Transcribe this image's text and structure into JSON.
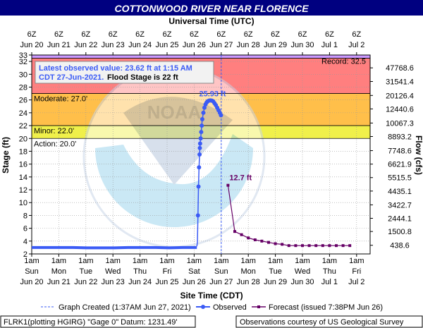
{
  "page": {
    "title": "COTTONWOOD RIVER NEAR FLORENCE",
    "top_axis_title": "Universal Time (UTC)",
    "bottom_axis_title": "Site Time (CDT)",
    "left_axis_label": "Stage (ft)",
    "right_axis_label": "Flow (cfs)",
    "latest_line1": "Latest observed value: 23.62 ft at 1:15 AM",
    "latest_line2a": "CDT 27-Jun-2021.",
    "latest_line2b": "Flood Stage is 22 ft",
    "legend_created": "Graph Created (1:37AM Jun 27, 2021)",
    "legend_observed": "Observed",
    "legend_forecast": "Forecast (issued 7:38PM Jun 26)",
    "footer_left": "FLRK1(plotting HGIRG) \"Gage 0\" Datum: 1231.49'",
    "footer_right": "Observations courtesy of US Geological Survey",
    "watermark_noaa": "NOAA",
    "colors": {
      "title_bg": "#000080",
      "observed": "#3b5bf5",
      "forecast": "#660066",
      "record_band": "#cc99ff",
      "major_band": "#ff7f7f",
      "moderate_band": "#ffbf4a",
      "minor_band": "#f0f04a",
      "latest_text": "#3b5bf5"
    }
  },
  "chart_data": {
    "type": "line",
    "ylim": [
      2,
      33
    ],
    "xlim": [
      0,
      12.5
    ],
    "y_ticks": [
      "2",
      "4",
      "6",
      "8",
      "10",
      "12",
      "14",
      "16",
      "18",
      "20",
      "22",
      "24",
      "26",
      "28",
      "30",
      "32",
      "33"
    ],
    "right_ticks": [
      {
        "stage": 31,
        "label": "47768.6"
      },
      {
        "stage": 28.875,
        "label": "31541.4"
      },
      {
        "stage": 26.7,
        "label": "20126.4"
      },
      {
        "stage": 24.6,
        "label": "12440.6"
      },
      {
        "stage": 22.4,
        "label": "10067.3"
      },
      {
        "stage": 20.3,
        "label": "8893.2"
      },
      {
        "stage": 18.1,
        "label": "7748.6"
      },
      {
        "stage": 16.0,
        "label": "6621.9"
      },
      {
        "stage": 13.9,
        "label": "5515.5"
      },
      {
        "stage": 11.8,
        "label": "4435.1"
      },
      {
        "stage": 9.65,
        "label": "3422.7"
      },
      {
        "stage": 7.55,
        "label": "2444.1"
      },
      {
        "stage": 5.5,
        "label": "1500.8"
      },
      {
        "stage": 3.35,
        "label": "438.6"
      }
    ],
    "bottom_ticks": [
      {
        "time": "1am",
        "day": "Sun",
        "date": "Jun 20"
      },
      {
        "time": "1am",
        "day": "Mon",
        "date": "Jun 21"
      },
      {
        "time": "1am",
        "day": "Tue",
        "date": "Jun 22"
      },
      {
        "time": "1am",
        "day": "Wed",
        "date": "Jun 23"
      },
      {
        "time": "1am",
        "day": "Thu",
        "date": "Jun 24"
      },
      {
        "time": "1am",
        "day": "Fri",
        "date": "Jun 25"
      },
      {
        "time": "1am",
        "day": "Sat",
        "date": "Jun 26"
      },
      {
        "time": "1am",
        "day": "Sun",
        "date": "Jun 27"
      },
      {
        "time": "1am",
        "day": "Mon",
        "date": "Jun 28"
      },
      {
        "time": "1am",
        "day": "Tue",
        "date": "Jun 29"
      },
      {
        "time": "1am",
        "day": "Wed",
        "date": "Jun 30"
      },
      {
        "time": "1am",
        "day": "Thu",
        "date": "Jul 1"
      },
      {
        "time": "1am",
        "day": "Fri",
        "date": "Jul 2"
      }
    ],
    "top_ticks": [
      {
        "hour": "6Z",
        "date": "Jun 20"
      },
      {
        "hour": "6Z",
        "date": "Jun 21"
      },
      {
        "hour": "6Z",
        "date": "Jun 22"
      },
      {
        "hour": "6Z",
        "date": "Jun 23"
      },
      {
        "hour": "6Z",
        "date": "Jun 24"
      },
      {
        "hour": "6Z",
        "date": "Jun 25"
      },
      {
        "hour": "6Z",
        "date": "Jun 26"
      },
      {
        "hour": "6Z",
        "date": "Jun 27"
      },
      {
        "hour": "6Z",
        "date": "Jun 28"
      },
      {
        "hour": "6Z",
        "date": "Jun 29"
      },
      {
        "hour": "6Z",
        "date": "Jun 30"
      },
      {
        "hour": "6Z",
        "date": "Jul 1"
      },
      {
        "hour": "6Z",
        "date": "Jul 2"
      }
    ],
    "bands": [
      {
        "name": "record",
        "from": 32.5,
        "to": 33,
        "label": "Record: 32.5",
        "color": "#cc99ff"
      },
      {
        "name": "major",
        "from": 27,
        "to": 32.5,
        "label": "",
        "color": "#ff7f7f"
      },
      {
        "name": "moderate",
        "from": 22,
        "to": 27,
        "label": "Moderate: 27.0'",
        "color": "#ffbf4a"
      },
      {
        "name": "minor",
        "from": 20,
        "to": 22,
        "label": "Minor: 22.0'",
        "color": "#f0f04a"
      },
      {
        "name": "action",
        "from": 20,
        "to": 20,
        "label": "Action: 20.0'",
        "color": "#f0f04a"
      }
    ],
    "graph_created_day": 7.0,
    "observed": {
      "name": "Observed",
      "flat_start_day": 0,
      "flat_end_day": 6.1,
      "flat_values": [
        3.0,
        3.0,
        3.0,
        3.0,
        2.95,
        2.95,
        2.95,
        3.0,
        3.0,
        3.0,
        2.95,
        3.0,
        3.0
      ],
      "x": [
        6.1,
        6.12,
        6.14,
        6.16,
        6.18,
        6.2,
        6.21,
        6.22,
        6.24,
        6.26,
        6.28,
        6.3,
        6.34,
        6.38,
        6.42,
        6.46,
        6.5,
        6.55,
        6.6,
        6.65,
        6.7,
        6.75,
        6.8,
        6.85,
        6.9,
        6.95,
        6.99
      ],
      "y": [
        3.2,
        3.8,
        8.0,
        12.5,
        15.5,
        17.5,
        18.5,
        19.2,
        20.0,
        21.0,
        22.0,
        23.0,
        24.0,
        24.8,
        25.3,
        25.6,
        25.8,
        25.9,
        25.93,
        25.9,
        25.8,
        25.5,
        25.2,
        24.8,
        24.4,
        24.0,
        23.62
      ],
      "peak_label": "25.93 ft"
    },
    "forecast": {
      "name": "Forecast (issued 7:38PM Jun 26)",
      "x": [
        7.25,
        7.5,
        7.75,
        8.0,
        8.25,
        8.5,
        8.75,
        9.0,
        9.25,
        9.5,
        9.75,
        10.0,
        10.25,
        10.5,
        10.75,
        11.0,
        11.25,
        11.5,
        11.75
      ],
      "y": [
        12.7,
        5.5,
        5.0,
        4.5,
        4.2,
        4.0,
        3.8,
        3.6,
        3.5,
        3.3,
        3.3,
        3.3,
        3.3,
        3.3,
        3.3,
        3.3,
        3.3,
        3.3,
        3.3
      ],
      "start_label": "12.7 ft"
    }
  }
}
